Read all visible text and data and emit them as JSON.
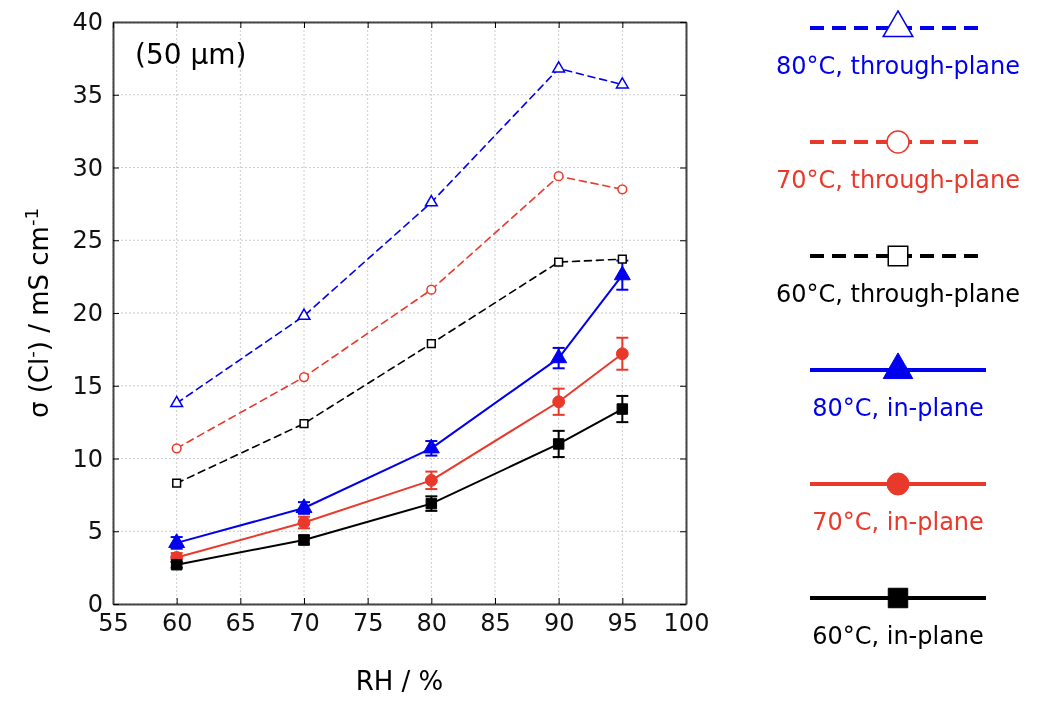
{
  "chart_data": {
    "type": "line",
    "title": "(50 µm)",
    "xlabel": "RH / %",
    "ylabel": "σ (Cl$^{-}$) / mS cm$^{-1}$",
    "x": [
      60,
      70,
      80,
      90,
      95
    ],
    "xlim": [
      55,
      100
    ],
    "xticks": [
      55,
      60,
      65,
      70,
      75,
      80,
      85,
      90,
      95,
      100
    ],
    "ylim": [
      0,
      40
    ],
    "yticks": [
      0,
      5,
      10,
      15,
      20,
      25,
      30,
      35,
      40
    ],
    "grid": true,
    "legend": "right",
    "series": [
      {
        "name": "80°C, through-plane",
        "color": "#0000ee",
        "marker": "triangle",
        "line_style": "dashed",
        "values": [
          13.8,
          19.8,
          27.6,
          36.8,
          35.7
        ]
      },
      {
        "name": "70°C, through-plane",
        "color": "#e8392b",
        "marker": "circle",
        "line_style": "dashed",
        "values": [
          10.7,
          15.6,
          21.6,
          29.4,
          28.5
        ]
      },
      {
        "name": "60°C, through-plane",
        "color": "#000000",
        "marker": "square",
        "line_style": "dashed",
        "values": [
          8.3,
          12.4,
          17.9,
          23.5,
          23.7
        ]
      },
      {
        "name": "80°C, in-plane",
        "color": "#0000ee",
        "marker": "triangle",
        "line_style": "solid",
        "values": [
          4.2,
          6.6,
          10.7,
          16.9,
          22.6
        ],
        "errors": [
          0.4,
          0.4,
          0.5,
          0.7,
          1.0
        ]
      },
      {
        "name": "70°C, in-plane",
        "color": "#e8392b",
        "marker": "circle",
        "line_style": "solid",
        "values": [
          3.2,
          5.6,
          8.5,
          13.9,
          17.2
        ],
        "errors": [
          0.3,
          0.4,
          0.6,
          0.9,
          1.1
        ]
      },
      {
        "name": "60°C, in-plane",
        "color": "#000000",
        "marker": "square",
        "line_style": "solid",
        "values": [
          2.7,
          4.4,
          6.9,
          11.0,
          13.4
        ],
        "errors": [
          0.2,
          0.3,
          0.5,
          0.9,
          0.9
        ]
      }
    ]
  }
}
